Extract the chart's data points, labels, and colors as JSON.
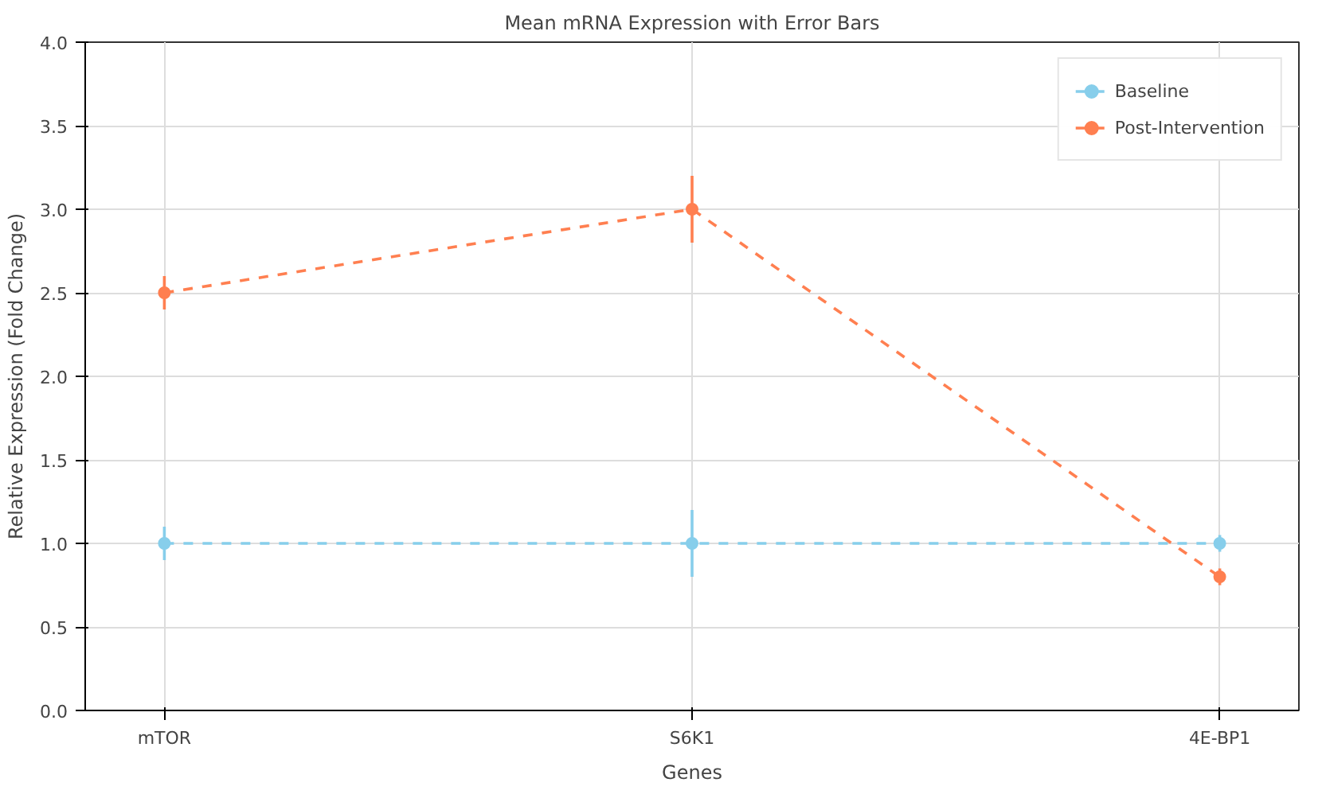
{
  "chart_data": {
    "type": "line",
    "title": "Mean mRNA Expression with Error Bars",
    "xlabel": "Genes",
    "ylabel": "Relative Expression (Fold Change)",
    "categories": [
      "mTOR",
      "S6K1",
      "4E-BP1"
    ],
    "series": [
      {
        "name": "Baseline",
        "color": "#87ceeb",
        "values": [
          1.0,
          1.0,
          1.0
        ],
        "errors": [
          0.1,
          0.2,
          0.05
        ]
      },
      {
        "name": "Post-Intervention",
        "color": "#ff7f50",
        "values": [
          2.5,
          3.0,
          0.8
        ],
        "errors": [
          0.1,
          0.2,
          0.05
        ]
      }
    ],
    "ylim": [
      0,
      4
    ],
    "yticks": [
      {
        "value": 0,
        "label": "0.0"
      },
      0.5,
      {
        "value": 1,
        "label": "1.0"
      },
      1.5,
      {
        "value": 2,
        "label": "2.0"
      },
      2.5,
      {
        "value": 3,
        "label": "3.0"
      },
      3.5,
      {
        "value": 4,
        "label": "4.0"
      }
    ],
    "grid": true,
    "legend": "top right",
    "marker": "circle",
    "line_style": "dashed"
  }
}
